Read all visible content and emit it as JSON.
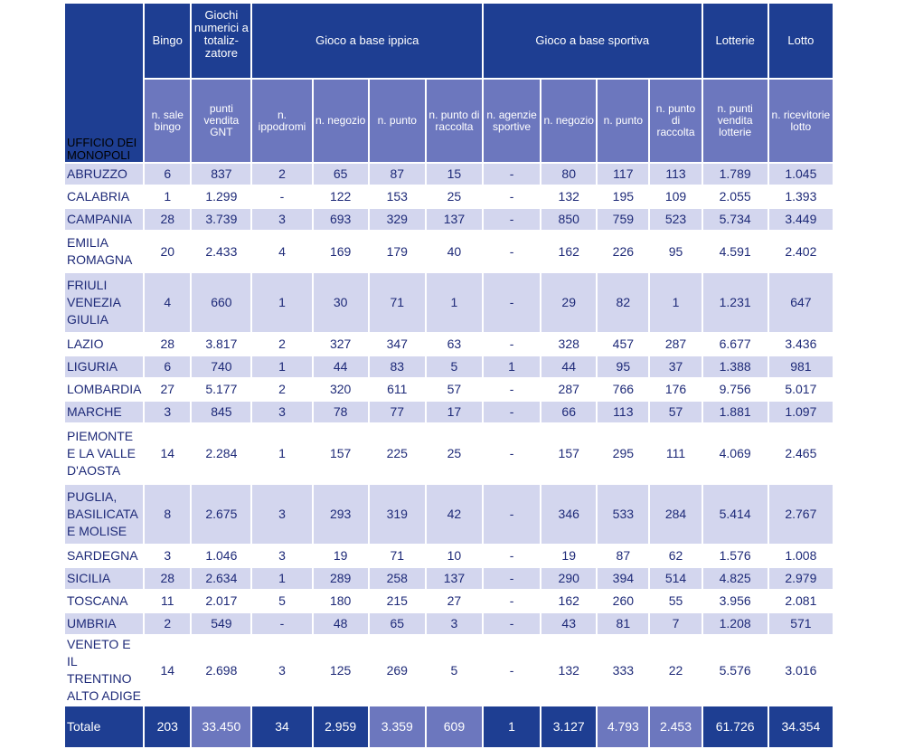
{
  "header": {
    "office": "UFFICIO DEI MONOPOLI",
    "groups": {
      "bingo": "Bingo",
      "gnt": "Giochi numerici a totaliz-zatore",
      "ippica": "Gioco a base ippica",
      "sportiva": "Gioco a base sportiva",
      "lotterie": "Lotterie",
      "lotto": "Lotto"
    },
    "sub": [
      "n. sale bingo",
      "punti vendita GNT",
      "n. ippodromi",
      "n. negozio",
      "n. punto",
      "n. punto di raccolta",
      "n. agenzie sportive",
      "n. negozio",
      "n. punto",
      "n. punto di raccolta",
      "n. punti vendita lotterie",
      "n. ricevitorie lotto"
    ]
  },
  "rows": [
    {
      "region": "ABRUZZO",
      "values": [
        "6",
        "837",
        "2",
        "65",
        "87",
        "15",
        "-",
        "80",
        "117",
        "113",
        "1.789",
        "1.045"
      ]
    },
    {
      "region": "CALABRIA",
      "values": [
        "1",
        "1.299",
        "-",
        "122",
        "153",
        "25",
        "-",
        "132",
        "195",
        "109",
        "2.055",
        "1.393"
      ]
    },
    {
      "region": "CAMPANIA",
      "values": [
        "28",
        "3.739",
        "3",
        "693",
        "329",
        "137",
        "-",
        "850",
        "759",
        "523",
        "5.734",
        "3.449"
      ]
    },
    {
      "region": "EMILIA ROMAGNA",
      "values": [
        "20",
        "2.433",
        "4",
        "169",
        "179",
        "40",
        "-",
        "162",
        "226",
        "95",
        "4.591",
        "2.402"
      ]
    },
    {
      "region": "FRIULI VENEZIA GIULIA",
      "values": [
        "4",
        "660",
        "1",
        "30",
        "71",
        "1",
        "-",
        "29",
        "82",
        "1",
        "1.231",
        "647"
      ]
    },
    {
      "region": "LAZIO",
      "values": [
        "28",
        "3.817",
        "2",
        "327",
        "347",
        "63",
        "-",
        "328",
        "457",
        "287",
        "6.677",
        "3.436"
      ]
    },
    {
      "region": "LIGURIA",
      "values": [
        "6",
        "740",
        "1",
        "44",
        "83",
        "5",
        "1",
        "44",
        "95",
        "37",
        "1.388",
        "981"
      ]
    },
    {
      "region": "LOMBARDIA",
      "values": [
        "27",
        "5.177",
        "2",
        "320",
        "611",
        "57",
        "-",
        "287",
        "766",
        "176",
        "9.756",
        "5.017"
      ]
    },
    {
      "region": "MARCHE",
      "values": [
        "3",
        "845",
        "3",
        "78",
        "77",
        "17",
        "-",
        "66",
        "113",
        "57",
        "1.881",
        "1.097"
      ]
    },
    {
      "region": "PIEMONTE E LA VALLE D'AOSTA",
      "values": [
        "14",
        "2.284",
        "1",
        "157",
        "225",
        "25",
        "-",
        "157",
        "295",
        "111",
        "4.069",
        "2.465"
      ]
    },
    {
      "region": "PUGLIA, BASILICATA E MOLISE",
      "values": [
        "8",
        "2.675",
        "3",
        "293",
        "319",
        "42",
        "-",
        "346",
        "533",
        "284",
        "5.414",
        "2.767"
      ]
    },
    {
      "region": "SARDEGNA",
      "values": [
        "3",
        "1.046",
        "3",
        "19",
        "71",
        "10",
        "-",
        "19",
        "87",
        "62",
        "1.576",
        "1.008"
      ]
    },
    {
      "region": "SICILIA",
      "values": [
        "28",
        "2.634",
        "1",
        "289",
        "258",
        "137",
        "-",
        "290",
        "394",
        "514",
        "4.825",
        "2.979"
      ]
    },
    {
      "region": "TOSCANA",
      "values": [
        "11",
        "2.017",
        "5",
        "180",
        "215",
        "27",
        "-",
        "162",
        "260",
        "55",
        "3.956",
        "2.081"
      ]
    },
    {
      "region": "UMBRIA",
      "values": [
        "2",
        "549",
        "-",
        "48",
        "65",
        "3",
        "-",
        "43",
        "81",
        "7",
        "1.208",
        "571"
      ]
    },
    {
      "region": "VENETO E IL TRENTINO ALTO ADIGE",
      "values": [
        "14",
        "2.698",
        "3",
        "125",
        "269",
        "5",
        "-",
        "132",
        "333",
        "22",
        "5.576",
        "3.016"
      ]
    }
  ],
  "total": {
    "label": "Totale",
    "values": [
      "203",
      "33.450",
      "34",
      "2.959",
      "3.359",
      "609",
      "1",
      "3.127",
      "4.793",
      "2.453",
      "61.726",
      "34.354"
    ]
  },
  "colors": {
    "dark_blue": "#1e3e92",
    "mid_blue": "#6c77be",
    "light_band": "#d3d6ee",
    "text_blue": "#1e2a78"
  }
}
